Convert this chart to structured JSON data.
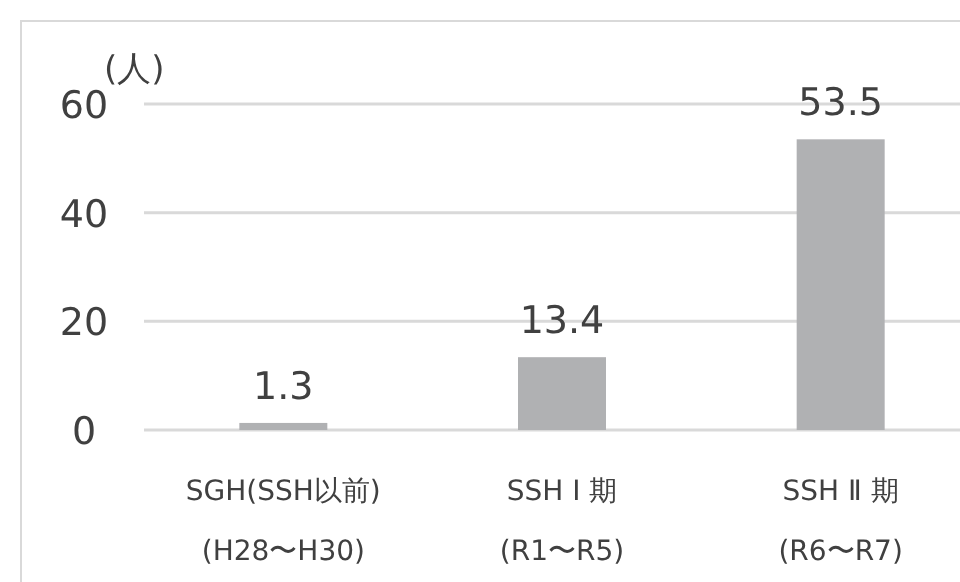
{
  "chart_data": {
    "type": "bar",
    "ylabel": "(人)",
    "categories": [
      "SGH(SSH以前)\n(H28〜H30)",
      "SSH Ⅰ 期\n(R1〜R5)",
      "SSH Ⅱ 期\n(R6〜R7)"
    ],
    "values": [
      1.3,
      13.4,
      53.5
    ],
    "color": "#b0b1b3",
    "ylim": [
      0,
      60
    ],
    "yticks": [
      0,
      20,
      40,
      60
    ],
    "grid": "y",
    "data_labels": true
  }
}
